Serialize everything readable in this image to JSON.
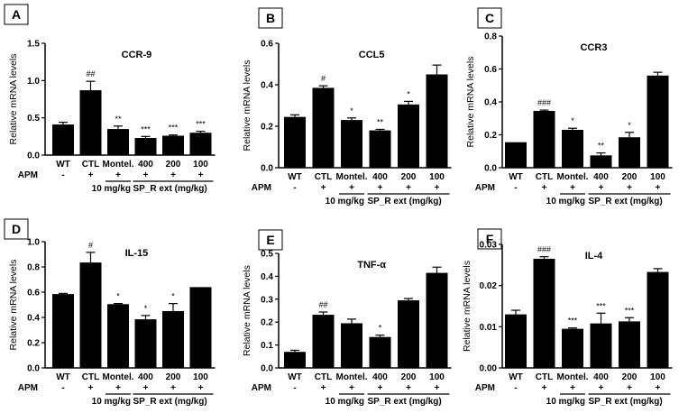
{
  "chart_data": [
    {
      "panel": "A",
      "type": "bar",
      "title": "CCR-9",
      "ylabel": "Relative mRNA levels",
      "ylim": [
        0,
        1.5
      ],
      "yticks": [
        "0.0",
        "0.5",
        "1.0",
        "1.5"
      ],
      "categories": [
        "WT",
        "CTL",
        "Montel.",
        "400",
        "200",
        "100"
      ],
      "values": [
        0.41,
        0.87,
        0.35,
        0.23,
        0.26,
        0.3
      ],
      "errors": [
        0.03,
        0.12,
        0.04,
        0.02,
        0.01,
        0.02
      ],
      "significance": [
        "",
        "##",
        "**",
        "***",
        "***",
        "***"
      ],
      "apm": [
        "-",
        "+",
        "+",
        "+",
        "+",
        "+"
      ],
      "apm_label": "APM",
      "group_labels": [
        "10 mg/kg",
        "SP_R ext (mg/kg)"
      ],
      "legend": "none",
      "grid": false
    },
    {
      "panel": "B",
      "type": "bar",
      "title": "CCL5",
      "ylabel": "Relative mRNA levels",
      "ylim": [
        0,
        0.6
      ],
      "yticks": [
        "0.0",
        "0.2",
        "0.4",
        "0.6"
      ],
      "categories": [
        "WT",
        "CTL",
        "Montel.",
        "400",
        "200",
        "100"
      ],
      "values": [
        0.245,
        0.385,
        0.23,
        0.18,
        0.305,
        0.45
      ],
      "errors": [
        0.01,
        0.01,
        0.01,
        0.005,
        0.015,
        0.045
      ],
      "significance": [
        "",
        "#",
        "*",
        "**",
        "*",
        ""
      ],
      "apm": [
        "-",
        "+",
        "+",
        "+",
        "+",
        "+"
      ],
      "apm_label": "APM",
      "group_labels": [
        "10 mg/kg",
        "SP_R ext (mg/kg)"
      ],
      "legend": "none",
      "grid": false
    },
    {
      "panel": "C",
      "type": "bar",
      "title": "CCR3",
      "ylabel": "Relative mRNA levels",
      "ylim": [
        0,
        0.8
      ],
      "yticks": [
        "0.0",
        "0.2",
        "0.4",
        "0.6",
        "0.8"
      ],
      "categories": [
        "WT",
        "CTL",
        "Montel.",
        "400",
        "200",
        "100"
      ],
      "values": [
        0.155,
        0.345,
        0.23,
        0.075,
        0.185,
        0.56
      ],
      "errors": [
        0.0,
        0.005,
        0.01,
        0.015,
        0.03,
        0.02
      ],
      "significance": [
        "",
        "###",
        "*",
        "**",
        "*",
        ""
      ],
      "apm": [
        "-",
        "+",
        "+",
        "+",
        "+",
        "+"
      ],
      "apm_label": "APM",
      "group_labels": [
        "10 mg/kg",
        "SP_R ext (mg/kg)"
      ],
      "legend": "none",
      "grid": false
    },
    {
      "panel": "D",
      "type": "bar",
      "title": "IL-15",
      "ylabel": "Relative mRNA levels",
      "ylim": [
        0,
        1.0
      ],
      "yticks": [
        "0.0",
        "0.2",
        "0.4",
        "0.6",
        "0.8",
        "1.0"
      ],
      "categories": [
        "WT",
        "CTL",
        "Montel.",
        "400",
        "200",
        "100"
      ],
      "values": [
        0.585,
        0.835,
        0.505,
        0.385,
        0.45,
        0.64
      ],
      "errors": [
        0.005,
        0.08,
        0.005,
        0.03,
        0.06,
        0.0
      ],
      "significance": [
        "",
        "#",
        "*",
        "*",
        "*",
        ""
      ],
      "apm": [
        "-",
        "+",
        "+",
        "+",
        "+",
        "+"
      ],
      "apm_label": "APM",
      "group_labels": [
        "10 mg/kg",
        "SP_R ext (mg/kg)"
      ],
      "legend": "none",
      "grid": false
    },
    {
      "panel": "E",
      "type": "bar",
      "title": "TNF-α",
      "ylabel": "Relative mRNA levels",
      "ylim": [
        0,
        0.5
      ],
      "yticks": [
        "0.0",
        "0.1",
        "0.2",
        "0.3",
        "0.4",
        "0.5"
      ],
      "categories": [
        "WT",
        "CTL",
        "Montel.",
        "400",
        "200",
        "100"
      ],
      "values": [
        0.07,
        0.232,
        0.195,
        0.135,
        0.295,
        0.415
      ],
      "errors": [
        0.007,
        0.012,
        0.018,
        0.008,
        0.008,
        0.025
      ],
      "significance": [
        "",
        "##",
        "",
        "*",
        "",
        ""
      ],
      "apm": [
        "-",
        "+",
        "+",
        "+",
        "+",
        "+"
      ],
      "apm_label": "APM",
      "group_labels": [
        "10 mg/kg",
        "SP_R ext (mg/kg)"
      ],
      "legend": "none",
      "grid": false
    },
    {
      "panel": "F",
      "type": "bar",
      "title": "IL-4",
      "ylabel": "Relative mRNA levels",
      "ylim": [
        0,
        0.03
      ],
      "yticks": [
        "0.00",
        "0.01",
        "0.02",
        "0.03"
      ],
      "categories": [
        "WT",
        "CTL",
        "Montel.",
        "400",
        "200",
        "100"
      ],
      "values": [
        0.013,
        0.0265,
        0.0095,
        0.0108,
        0.0113,
        0.0233
      ],
      "errors": [
        0.001,
        0.0005,
        0.0002,
        0.0025,
        0.0009,
        0.0008
      ],
      "significance": [
        "",
        "###",
        "***",
        "***",
        "***",
        ""
      ],
      "apm": [
        "-",
        "+",
        "+",
        "+",
        "+",
        "+"
      ],
      "apm_label": "APM",
      "group_labels": [
        "10 mg/kg",
        "SP_R ext (mg/kg)"
      ],
      "legend": "none",
      "grid": false
    }
  ]
}
